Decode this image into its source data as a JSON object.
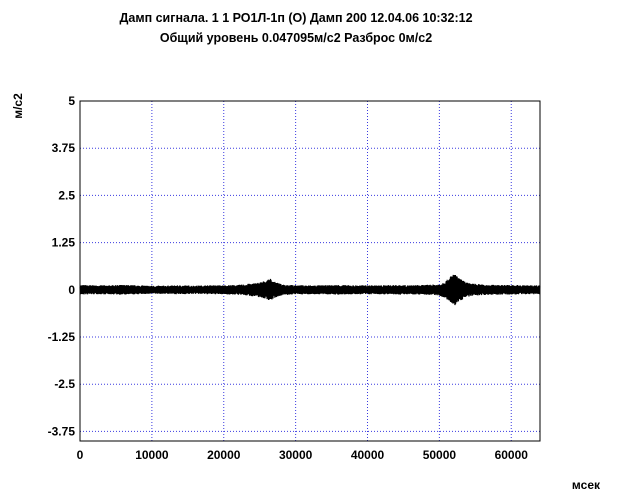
{
  "chart_data": {
    "type": "line",
    "title": "Дамп сигнала. 1 1 РО1Л-1п (О) Дамп 200 12.04.06 10:32:12",
    "subtitle": "Общий уровень 0.047095м/с2 Разброс 0м/с2",
    "xlabel": "мсек",
    "ylabel": "м/с2",
    "xlim": [
      0,
      64000
    ],
    "ylim": [
      -3.75,
      5
    ],
    "x_ticks": [
      0,
      10000,
      20000,
      30000,
      40000,
      50000,
      60000
    ],
    "x_tick_labels": [
      "0",
      "10000",
      "20000",
      "30000",
      "40000",
      "50000",
      "60000"
    ],
    "y_ticks": [
      5,
      3.75,
      2.5,
      1.25,
      0,
      -1.25,
      -2.5,
      -3.75
    ],
    "y_tick_labels": [
      "5",
      "3.75",
      "2.5",
      "1.25",
      "0",
      "-1.25",
      "-2.5",
      "-3.75"
    ],
    "grid": true,
    "grid_color": "#3a3ae0",
    "line_color": "#000000",
    "series": [
      {
        "x": [
          0,
          2000,
          4000,
          6000,
          8000,
          10000,
          12000,
          14000,
          16000,
          18000,
          20000,
          22000,
          24000,
          25000,
          26000,
          26500,
          27000,
          28000,
          30000,
          32000,
          34000,
          36000,
          38000,
          40000,
          42000,
          44000,
          46000,
          48000,
          50000,
          51000,
          51500,
          52000,
          52500,
          53000,
          54000,
          56000,
          58000,
          60000,
          62000,
          64000
        ],
        "envelope": [
          0.13,
          0.12,
          0.12,
          0.13,
          0.12,
          0.11,
          0.11,
          0.12,
          0.11,
          0.12,
          0.12,
          0.13,
          0.17,
          0.2,
          0.25,
          0.3,
          0.22,
          0.15,
          0.12,
          0.12,
          0.12,
          0.13,
          0.12,
          0.12,
          0.12,
          0.13,
          0.12,
          0.13,
          0.15,
          0.25,
          0.35,
          0.45,
          0.35,
          0.28,
          0.18,
          0.14,
          0.13,
          0.13,
          0.12,
          0.12
        ]
      }
    ]
  }
}
